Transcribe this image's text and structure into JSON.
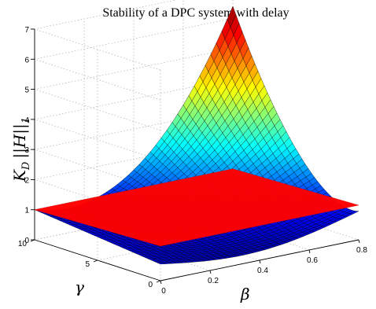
{
  "chart_data": {
    "type": "surface3d",
    "title": "Stability of a DPC system with delay",
    "zlabel_main": "K",
    "zlabel_sub": "D",
    "zlabel_tail": "||H||",
    "zlabel_tail_sub": "1",
    "xlabel": "β",
    "ylabel": "γ",
    "xlim": [
      0,
      0.8
    ],
    "ylim": [
      0,
      10
    ],
    "zlim": [
      0,
      7
    ],
    "xticks": [
      "0",
      "0.2",
      "0.4",
      "0.6",
      "0.8"
    ],
    "yticks": [
      "0",
      "5",
      "10"
    ],
    "zticks": [
      "0",
      "1",
      "2",
      "3",
      "4",
      "5",
      "6",
      "7"
    ],
    "grid": true,
    "colormap": "jet",
    "plane": {
      "z": 1,
      "color": "#ff0000"
    },
    "surface_peak": {
      "x": 0.8,
      "y": 10,
      "z": 6.4
    },
    "surface_corner_values": [
      {
        "x": 0,
        "y": 0,
        "z": 0.55
      },
      {
        "x": 0,
        "y": 10,
        "z": 1.0
      },
      {
        "x": 0.8,
        "y": 0,
        "z": 0.95
      },
      {
        "x": 0.8,
        "y": 10,
        "z": 6.4
      }
    ]
  }
}
